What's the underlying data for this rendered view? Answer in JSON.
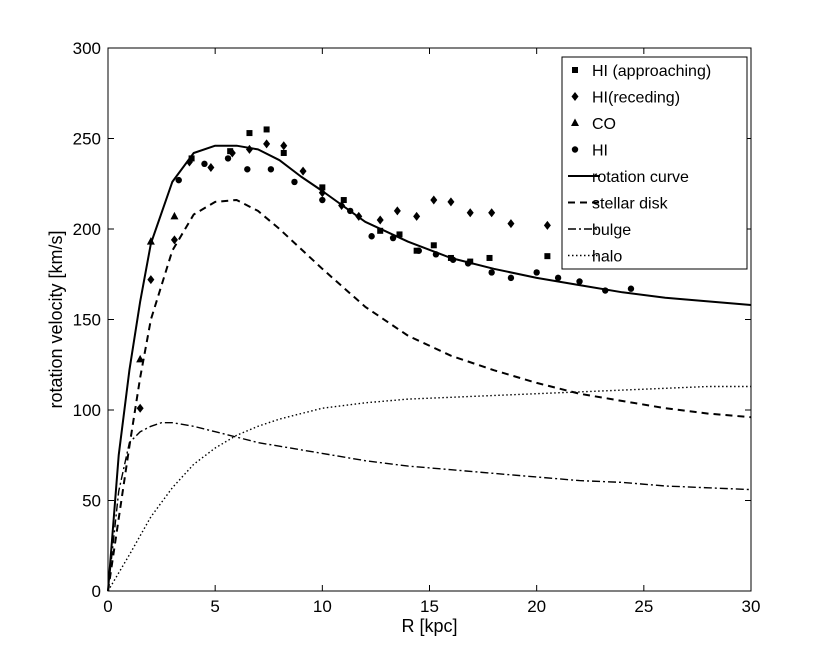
{
  "chart_data": {
    "type": "scatter",
    "title": "",
    "xlabel": "R [kpc]",
    "ylabel": "rotation velocity [km/s]",
    "xlim": [
      0,
      30
    ],
    "ylim": [
      0,
      300
    ],
    "xticks": [
      0,
      5,
      10,
      15,
      20,
      25,
      30
    ],
    "yticks": [
      0,
      50,
      100,
      150,
      200,
      250,
      300
    ],
    "grid": false,
    "legend_position": "top-right",
    "series": [
      {
        "name": "HI (approaching)",
        "kind": "points",
        "marker": "square",
        "x": [
          3.9,
          5.7,
          6.6,
          7.4,
          8.2,
          10.0,
          11.0,
          12.7,
          13.6,
          14.4,
          15.2,
          16.0,
          16.9,
          17.8,
          20.5
        ],
        "y": [
          239,
          243,
          253,
          255,
          242,
          223,
          216,
          199,
          197,
          188,
          191,
          184,
          182,
          184,
          185
        ]
      },
      {
        "name": "HI(receding)",
        "kind": "points",
        "marker": "diamond",
        "x": [
          1.5,
          2.0,
          3.1,
          3.8,
          4.8,
          5.8,
          6.6,
          7.4,
          8.2,
          9.1,
          10.0,
          10.9,
          11.7,
          12.7,
          13.5,
          14.4,
          15.2,
          16.0,
          16.9,
          17.9,
          18.8,
          20.5
        ],
        "y": [
          101,
          172,
          194,
          237,
          234,
          242,
          244,
          247,
          246,
          232,
          220,
          213,
          207,
          205,
          210,
          207,
          216,
          215,
          209,
          209,
          203,
          202
        ]
      },
      {
        "name": "CO",
        "kind": "points",
        "marker": "triangle",
        "x": [
          1.5,
          2.0,
          3.1
        ],
        "y": [
          128,
          193,
          207
        ]
      },
      {
        "name": "HI",
        "kind": "points",
        "marker": "circle",
        "x": [
          3.3,
          4.5,
          5.6,
          6.5,
          7.6,
          8.7,
          10.0,
          11.3,
          12.3,
          13.3,
          14.5,
          15.3,
          16.1,
          16.8,
          17.9,
          18.8,
          20.0,
          21.0,
          22.0,
          23.2,
          24.4
        ],
        "y": [
          227,
          236,
          239,
          233,
          233,
          226,
          216,
          210,
          196,
          195,
          188,
          186,
          183,
          181,
          176,
          173,
          176,
          173,
          171,
          166,
          167
        ]
      },
      {
        "name": "rotation curve",
        "kind": "line",
        "dash": "solid",
        "x": [
          0,
          0.5,
          1,
          1.5,
          2,
          3,
          4,
          5,
          6,
          7,
          8,
          9,
          10,
          12,
          14,
          16,
          18,
          20,
          22,
          24,
          26,
          28,
          30
        ],
        "y": [
          0,
          75,
          122,
          160,
          192,
          226,
          242,
          246,
          246,
          244,
          238,
          229,
          221,
          204,
          193,
          184,
          178,
          173,
          169,
          165,
          162,
          160,
          158
        ]
      },
      {
        "name": "stellar disk",
        "kind": "line",
        "dash": "dashed",
        "x": [
          0,
          0.5,
          1,
          1.5,
          2,
          3,
          4,
          5,
          6,
          7,
          8,
          9,
          10,
          12,
          14,
          16,
          18,
          20,
          22,
          24,
          26,
          28,
          30
        ],
        "y": [
          0,
          40,
          80,
          118,
          150,
          188,
          208,
          215,
          216,
          210,
          200,
          189,
          178,
          157,
          141,
          130,
          122,
          115,
          109,
          105,
          101,
          98,
          96
        ]
      },
      {
        "name": "bulge",
        "kind": "line",
        "dash": "dashdot",
        "x": [
          0,
          0.5,
          1,
          1.5,
          2,
          2.5,
          3,
          4,
          5,
          6,
          7,
          8,
          10,
          12,
          14,
          16,
          18,
          20,
          22,
          24,
          26,
          28,
          30
        ],
        "y": [
          0,
          55,
          82,
          88,
          91,
          93,
          93,
          91,
          88,
          85,
          82,
          80,
          76,
          72,
          69,
          67,
          65,
          63,
          61,
          60,
          58,
          57,
          56
        ]
      },
      {
        "name": "halo",
        "kind": "line",
        "dash": "dotted",
        "x": [
          0,
          0.5,
          1,
          2,
          3,
          4,
          5,
          6,
          7,
          8,
          10,
          12,
          14,
          16,
          18,
          20,
          22,
          24,
          26,
          28,
          30
        ],
        "y": [
          0,
          10,
          20,
          41,
          57,
          70,
          79,
          86,
          91,
          95,
          101,
          104,
          106,
          107,
          108,
          109,
          110,
          111,
          112,
          113,
          113
        ]
      }
    ]
  }
}
